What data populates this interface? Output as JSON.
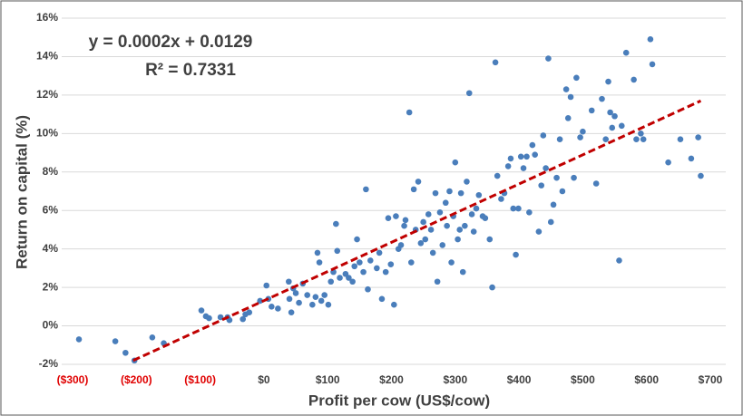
{
  "chart_data": {
    "type": "scatter",
    "xlabel": "Profit per cow (US$/cow)",
    "ylabel": "Return on capital (%)",
    "annotations": [
      "y = 0.0002x + 0.0129",
      "R² = 0.7331"
    ],
    "xlim": [
      -300,
      700
    ],
    "ylim": [
      -2,
      16
    ],
    "xticks": [
      {
        "value": -300,
        "label": "($300)"
      },
      {
        "value": -200,
        "label": "($200)"
      },
      {
        "value": -100,
        "label": "($100)"
      },
      {
        "value": 0,
        "label": "$0"
      },
      {
        "value": 100,
        "label": "$100"
      },
      {
        "value": 200,
        "label": "$200"
      },
      {
        "value": 300,
        "label": "$300"
      },
      {
        "value": 400,
        "label": "$400"
      },
      {
        "value": 500,
        "label": "$500"
      },
      {
        "value": 600,
        "label": "$600"
      },
      {
        "value": 700,
        "label": "$700"
      }
    ],
    "yticks": [
      {
        "value": -2,
        "label": "-2%"
      },
      {
        "value": 0,
        "label": "0%"
      },
      {
        "value": 2,
        "label": "2%"
      },
      {
        "value": 4,
        "label": "4%"
      },
      {
        "value": 6,
        "label": "6%"
      },
      {
        "value": 8,
        "label": "8%"
      },
      {
        "value": 10,
        "label": "10%"
      },
      {
        "value": 12,
        "label": "12%"
      },
      {
        "value": 14,
        "label": "14%"
      },
      {
        "value": 16,
        "label": "16%"
      }
    ],
    "grid": true,
    "negative_tick_color": "#e00000",
    "series": [
      {
        "color": "#4a7ebb",
        "x": [
          -290,
          -233,
          -217,
          -203,
          -175,
          -157,
          -98,
          -91,
          -86,
          -68,
          -57,
          -54,
          -33,
          -29,
          -23,
          -6,
          4,
          7,
          12,
          22,
          40,
          39,
          46,
          50,
          43,
          55,
          61,
          68,
          76,
          84,
          87,
          81,
          90,
          95,
          101,
          105,
          109,
          113,
          115,
          119,
          128,
          133,
          139,
          142,
          146,
          150,
          156,
          160,
          163,
          167,
          177,
          181,
          185,
          191,
          195,
          199,
          204,
          207,
          211,
          215,
          220,
          222,
          228,
          231,
          235,
          238,
          242,
          246,
          250,
          253,
          258,
          262,
          265,
          269,
          272,
          276,
          280,
          285,
          287,
          291,
          294,
          297,
          300,
          304,
          307,
          309,
          312,
          315,
          318,
          322,
          326,
          329,
          333,
          337,
          343,
          347,
          354,
          358,
          363,
          366,
          372,
          377,
          383,
          387,
          391,
          395,
          399,
          403,
          407,
          412,
          416,
          421,
          425,
          431,
          435,
          438,
          442,
          446,
          450,
          454,
          459,
          464,
          468,
          474,
          477,
          481,
          486,
          490,
          496,
          500,
          514,
          521,
          530,
          536,
          540,
          543,
          546,
          550,
          557,
          561,
          568,
          580,
          584,
          591,
          595,
          606,
          609,
          634,
          653,
          670,
          681,
          685
        ],
        "values": [
          -0.7,
          -0.8,
          -1.4,
          -1.8,
          -0.6,
          -0.9,
          0.8,
          0.5,
          0.4,
          0.45,
          0.45,
          0.3,
          0.35,
          0.6,
          0.7,
          1.3,
          2.1,
          1.4,
          1.0,
          0.9,
          1.4,
          2.3,
          1.95,
          1.7,
          0.7,
          1.2,
          2.2,
          1.6,
          1.1,
          3.8,
          3.3,
          1.5,
          1.3,
          1.6,
          1.1,
          2.3,
          2.8,
          5.3,
          3.9,
          2.5,
          2.7,
          2.5,
          2.3,
          3.1,
          4.5,
          3.3,
          2.8,
          7.1,
          1.9,
          3.4,
          3.0,
          3.8,
          1.4,
          2.8,
          5.6,
          3.2,
          1.1,
          5.7,
          4.0,
          4.2,
          5.2,
          5.5,
          11.1,
          3.3,
          7.1,
          5.0,
          7.5,
          4.3,
          5.4,
          4.5,
          5.8,
          5.0,
          3.8,
          6.9,
          2.3,
          5.9,
          4.2,
          6.4,
          5.2,
          7.0,
          3.3,
          5.7,
          8.5,
          4.5,
          5.0,
          6.9,
          2.8,
          5.2,
          7.5,
          12.1,
          5.8,
          4.9,
          6.1,
          6.8,
          5.7,
          5.6,
          4.5,
          2.0,
          13.7,
          7.8,
          6.6,
          6.9,
          8.3,
          8.7,
          6.1,
          3.7,
          6.1,
          8.8,
          8.2,
          8.8,
          5.9,
          9.4,
          8.9,
          4.9,
          7.3,
          9.9,
          8.2,
          13.9,
          5.4,
          6.3,
          7.7,
          9.7,
          7.0,
          12.3,
          10.8,
          11.9,
          7.7,
          12.9,
          9.8,
          10.1,
          11.2,
          7.4,
          11.8,
          9.7,
          12.7,
          11.1,
          10.3,
          10.9,
          3.4,
          10.4,
          14.2,
          12.8,
          9.7,
          10.0,
          9.7,
          14.9,
          13.6,
          8.5,
          9.7,
          8.7,
          9.8,
          7.8
        ]
      }
    ],
    "trendline": {
      "color": "#c00000",
      "x": [
        -205,
        685
      ],
      "values": [
        -1.8,
        11.7
      ]
    }
  }
}
